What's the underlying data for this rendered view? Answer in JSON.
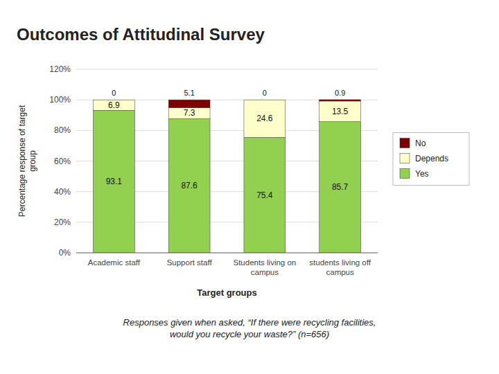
{
  "chart_data": {
    "type": "bar",
    "stacked": true,
    "title": "Outcomes of Attitudinal Survey",
    "subtitle": "Responses given when asked, “If there were recycling facilities,\nwould you recycle your waste?”  (n=656)",
    "xlabel": "Target groups",
    "ylabel": "Percentage response of target\ngroup",
    "categories": [
      "Academic staff",
      "Support staff",
      "Students living on\ncampus",
      "students living off\ncampus"
    ],
    "series": [
      {
        "name": "Yes",
        "color": "#92d050",
        "values": [
          93.1,
          87.6,
          75.4,
          85.7
        ]
      },
      {
        "name": "Depends",
        "color": "#ffffcc",
        "values": [
          6.9,
          7.3,
          24.6,
          13.5
        ]
      },
      {
        "name": "No",
        "color": "#7b0000",
        "values": [
          0.0,
          5.1,
          0.0,
          0.9
        ],
        "value_labels": [
          "0",
          "5.1",
          "0",
          "0.9"
        ]
      }
    ],
    "ylim": [
      0,
      120
    ],
    "yticks": [
      {
        "value": 0,
        "label": "0%"
      },
      {
        "value": 20,
        "label": "20%"
      },
      {
        "value": 40,
        "label": "40%"
      },
      {
        "value": 60,
        "label": "60%"
      },
      {
        "value": 80,
        "label": "80%"
      },
      {
        "value": 100,
        "label": "100%"
      },
      {
        "value": 120,
        "label": "120%"
      }
    ],
    "grid": true,
    "legend": "right",
    "data_labels": true
  }
}
